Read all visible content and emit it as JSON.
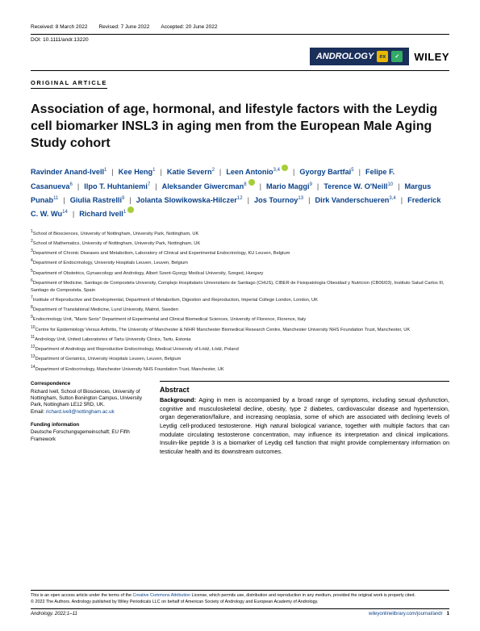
{
  "header": {
    "received_label": "Received: 8 March 2022",
    "revised_label": "Revised: 7 June 2022",
    "accepted_label": "Accepted: 20 June 2022",
    "doi": "DOI: 10.1111/andr.13220",
    "journal_brand": "ANDROLOGY",
    "publisher": "WILEY",
    "article_type": "ORIGINAL ARTICLE"
  },
  "title": "Association of age, hormonal, and lifestyle factors with the Leydig cell biomarker INSL3 in aging men from the European Male Aging Study cohort",
  "authors": [
    {
      "name": "Ravinder Anand-Ivell",
      "aff": "1",
      "orcid": false
    },
    {
      "name": "Kee Heng",
      "aff": "1",
      "orcid": false
    },
    {
      "name": "Katie Severn",
      "aff": "2",
      "orcid": false
    },
    {
      "name": "Leen Antonio",
      "aff": "3,4",
      "orcid": true
    },
    {
      "name": "Gyorgy Bartfai",
      "aff": "5",
      "orcid": false
    },
    {
      "name": "Felipe F. Casanueva",
      "aff": "6",
      "orcid": false
    },
    {
      "name": "Ilpo T. Huhtaniemi",
      "aff": "7",
      "orcid": false
    },
    {
      "name": "Aleksander Giwercman",
      "aff": "8",
      "orcid": true
    },
    {
      "name": "Mario Maggi",
      "aff": "9",
      "orcid": false
    },
    {
      "name": "Terence W. O'Neill",
      "aff": "10",
      "orcid": false
    },
    {
      "name": "Margus Punab",
      "aff": "11",
      "orcid": false
    },
    {
      "name": "Giulia Rastrelli",
      "aff": "9",
      "orcid": false
    },
    {
      "name": "Jolanta Slowikowska-Hilczer",
      "aff": "12",
      "orcid": false
    },
    {
      "name": "Jos Tournoy",
      "aff": "13",
      "orcid": false
    },
    {
      "name": "Dirk Vanderschueren",
      "aff": "3,4",
      "orcid": false
    },
    {
      "name": "Frederick C. W. Wu",
      "aff": "14",
      "orcid": false
    },
    {
      "name": "Richard Ivell",
      "aff": "1",
      "orcid": true
    }
  ],
  "affiliations": [
    "School of Biosciences, University of Nottingham, University Park, Nottingham, UK",
    "School of Mathematics, University of Nottingham, University Park, Nottingham, UK",
    "Department of Chronic Diseases and Metabolism, Laboratory of Clinical and Experimental Endocrinology, KU Leuven, Belgium",
    "Department of Endocrinology, University Hospitals Leuven, Leuven, Belgium",
    "Department of Obstetrics, Gynaecology and Andrology, Albert Szent-Gyorgy Medical University, Szeged, Hungary",
    "Department of Medicine, Santiago de Compostela University, Complejo Hospitalario Universitario de Santiago (CHUS), CIBER de Fisiopatología Obesidad y Nutricion (CB06/03), Instituto Salud Carlos III, Santiago de Compostela, Spain",
    "Institute of Reproductive and Developmental, Department of Metabolism, Digestion and Reproduction, Imperial College London, London, UK",
    "Department of Translational Medicine, Lund University, Malmö, Sweden",
    "Endocrinology Unit, \"Mario Serio\" Department of Experimental and Clinical Biomedical Sciences, University of Florence, Florence, Italy",
    "Centre for Epidemiology Versus Arthritis, The University of Manchester & NIHR Manchester Biomedical Research Centre, Manchester University NHS Foundation Trust, Manchester, UK",
    "Andrology Unit, United Laboratories of Tartu University Clinics, Tartu, Estonia",
    "Department of Andrology and Reproductive Endocrinology, Medical University of Łódź, Łódź, Poland",
    "Department of Geriatrics, University Hospitals Leuven, Leuven, Belgium",
    "Department of Endocrinology, Manchester University NHS Foundation Trust, Manchester, UK"
  ],
  "correspondence": {
    "heading": "Correspondence",
    "body": "Richard Ivell, School of Biosciences, University of Nottingham, Sutton Bonington Campus, University Park, Nottingham LE12 5RD, UK.",
    "email_label": "Email: ",
    "email": "richard.ivell@nottingham.ac.uk"
  },
  "funding": {
    "heading": "Funding information",
    "body": "Deutsche Forschungsgemeinschaft; EU Fifth Framework"
  },
  "abstract": {
    "heading": "Abstract",
    "bg_label": "Background: ",
    "body": "Aging in men is accompanied by a broad range of symptoms, including sexual dysfunction, cognitive and musculoskeletal decline, obesity, type 2 diabetes, cardiovascular disease and hypertension, organ degeneration/failure, and increasing neoplasia, some of which are associated with declining levels of Leydig cell-produced testosterone. High natural biological variance, together with multiple factors that can modulate circulating testosterone concentration, may influence its interpretation and clinical implications. Insulin-like peptide 3 is a biomarker of Leydig cell function that might provide complementary information on testicular health and its downstream outcomes."
  },
  "footer": {
    "license_pre": "This is an open access article under the terms of the ",
    "license_link": "Creative Commons Attribution",
    "license_post": " License, which permits use, distribution and reproduction in any medium, provided the original work is properly cited.",
    "copyright": "© 2022 The Authors. Andrology published by Wiley Periodicals LLC on behalf of American Society of Andrology and European Academy of Andrology.",
    "journal": "Andrology. 2022;1–11",
    "url": "wileyonlinelibrary.com/journal/andr",
    "page": "1"
  },
  "colors": {
    "link": "#0a428a",
    "orcid": "#a6ce39",
    "badge_bg": "#1a2f5a",
    "badge_accent": "#e8b800"
  }
}
